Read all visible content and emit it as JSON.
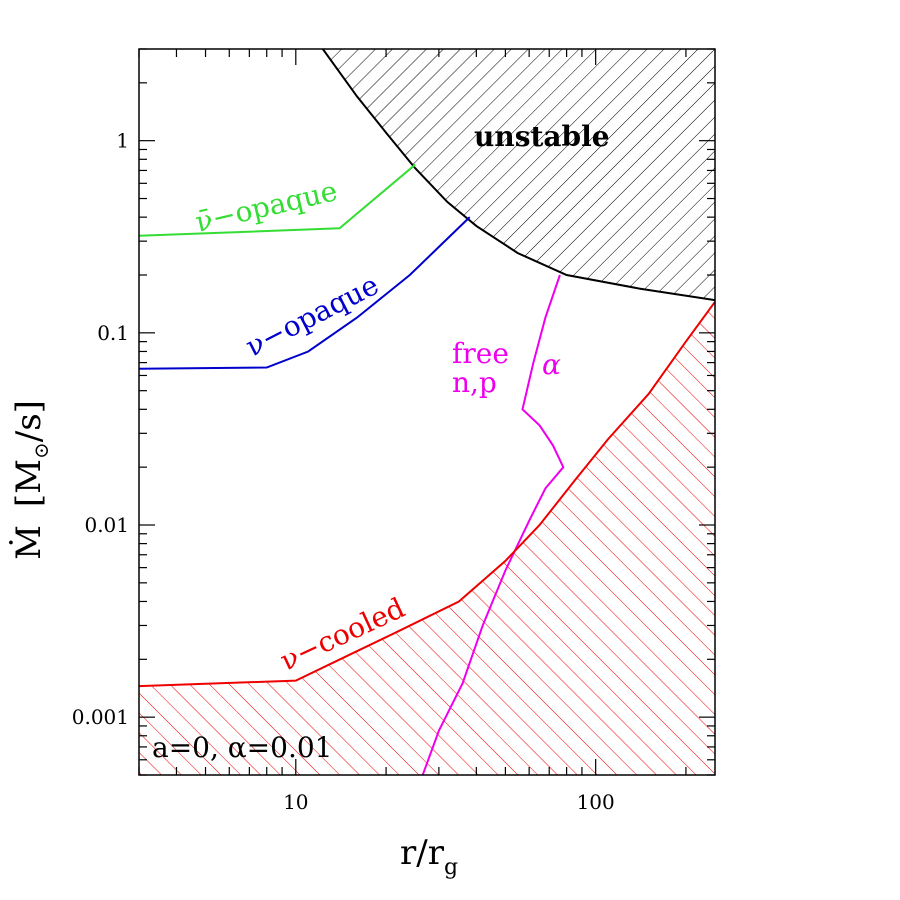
{
  "chart_data": {
    "type": "line",
    "title": "",
    "xlabel": "r/r",
    "xlabel_sub": "g",
    "ylabel_main": "Ṁ",
    "ylabel_unit_open": "[M",
    "ylabel_unit_sub": "⊙",
    "ylabel_unit_close": "/s]",
    "xscale": "log",
    "yscale": "log",
    "xlim": [
      3.0,
      250
    ],
    "ylim": [
      0.0005,
      3.0
    ],
    "grid": false,
    "x_ticks": [
      {
        "value": 10,
        "label": "10"
      },
      {
        "value": 100,
        "label": "100"
      }
    ],
    "y_ticks": [
      {
        "value": 0.001,
        "label": "0.001"
      },
      {
        "value": 0.01,
        "label": "0.01"
      },
      {
        "value": 0.1,
        "label": "0.1"
      },
      {
        "value": 1,
        "label": "1"
      }
    ],
    "colors": {
      "unstable": "#000000",
      "nubar_opaque": "#33dd33",
      "nu_opaque": "#0000cc",
      "composition": "#ee00ee",
      "cooled": "#ee0000"
    },
    "series": [
      {
        "key": "unstable",
        "points": [
          [
            12.3,
            3.0
          ],
          [
            16,
            1.7
          ],
          [
            20,
            1.1
          ],
          [
            25,
            0.72
          ],
          [
            32,
            0.48
          ],
          [
            40,
            0.36
          ],
          [
            55,
            0.26
          ],
          [
            80,
            0.2
          ],
          [
            140,
            0.17
          ],
          [
            250,
            0.148
          ]
        ]
      },
      {
        "key": "nubar_opaque",
        "points": [
          [
            3.0,
            0.32
          ],
          [
            14,
            0.35
          ],
          [
            25,
            0.75
          ]
        ]
      },
      {
        "key": "nu_opaque",
        "points": [
          [
            3.0,
            0.065
          ],
          [
            8,
            0.066
          ],
          [
            11,
            0.08
          ],
          [
            16,
            0.12
          ],
          [
            24,
            0.2
          ],
          [
            30,
            0.28
          ],
          [
            38,
            0.4
          ]
        ]
      },
      {
        "key": "composition",
        "points": [
          [
            26.5,
            0.0005
          ],
          [
            30,
            0.00085
          ],
          [
            36,
            0.0015
          ],
          [
            42,
            0.003
          ],
          [
            50,
            0.0058
          ],
          [
            60,
            0.0105
          ],
          [
            68,
            0.0155
          ],
          [
            78,
            0.02
          ],
          [
            72,
            0.026
          ],
          [
            65,
            0.033
          ],
          [
            57,
            0.04
          ],
          [
            62,
            0.07
          ],
          [
            68,
            0.12
          ],
          [
            76,
            0.2
          ]
        ]
      },
      {
        "key": "cooled",
        "points": [
          [
            3.0,
            0.00145
          ],
          [
            10,
            0.00155
          ],
          [
            15,
            0.0021
          ],
          [
            22,
            0.0028
          ],
          [
            35,
            0.004
          ],
          [
            50,
            0.0065
          ],
          [
            65,
            0.01
          ],
          [
            85,
            0.017
          ],
          [
            110,
            0.028
          ],
          [
            150,
            0.048
          ],
          [
            200,
            0.09
          ],
          [
            250,
            0.145
          ]
        ]
      }
    ],
    "annotations": [
      {
        "text": "unstable",
        "key": "unstable"
      },
      {
        "text": "ν̄−opaque",
        "key": "nubar_opaque"
      },
      {
        "text": "ν−opaque",
        "key": "nu_opaque"
      },
      {
        "text": "free",
        "key": "composition"
      },
      {
        "text": "n,p",
        "key": "composition"
      },
      {
        "text": "α",
        "key": "composition"
      },
      {
        "text": "ν−cooled",
        "key": "cooled"
      },
      {
        "text": "a=0,  α=0.01",
        "key": "unstable"
      }
    ]
  }
}
